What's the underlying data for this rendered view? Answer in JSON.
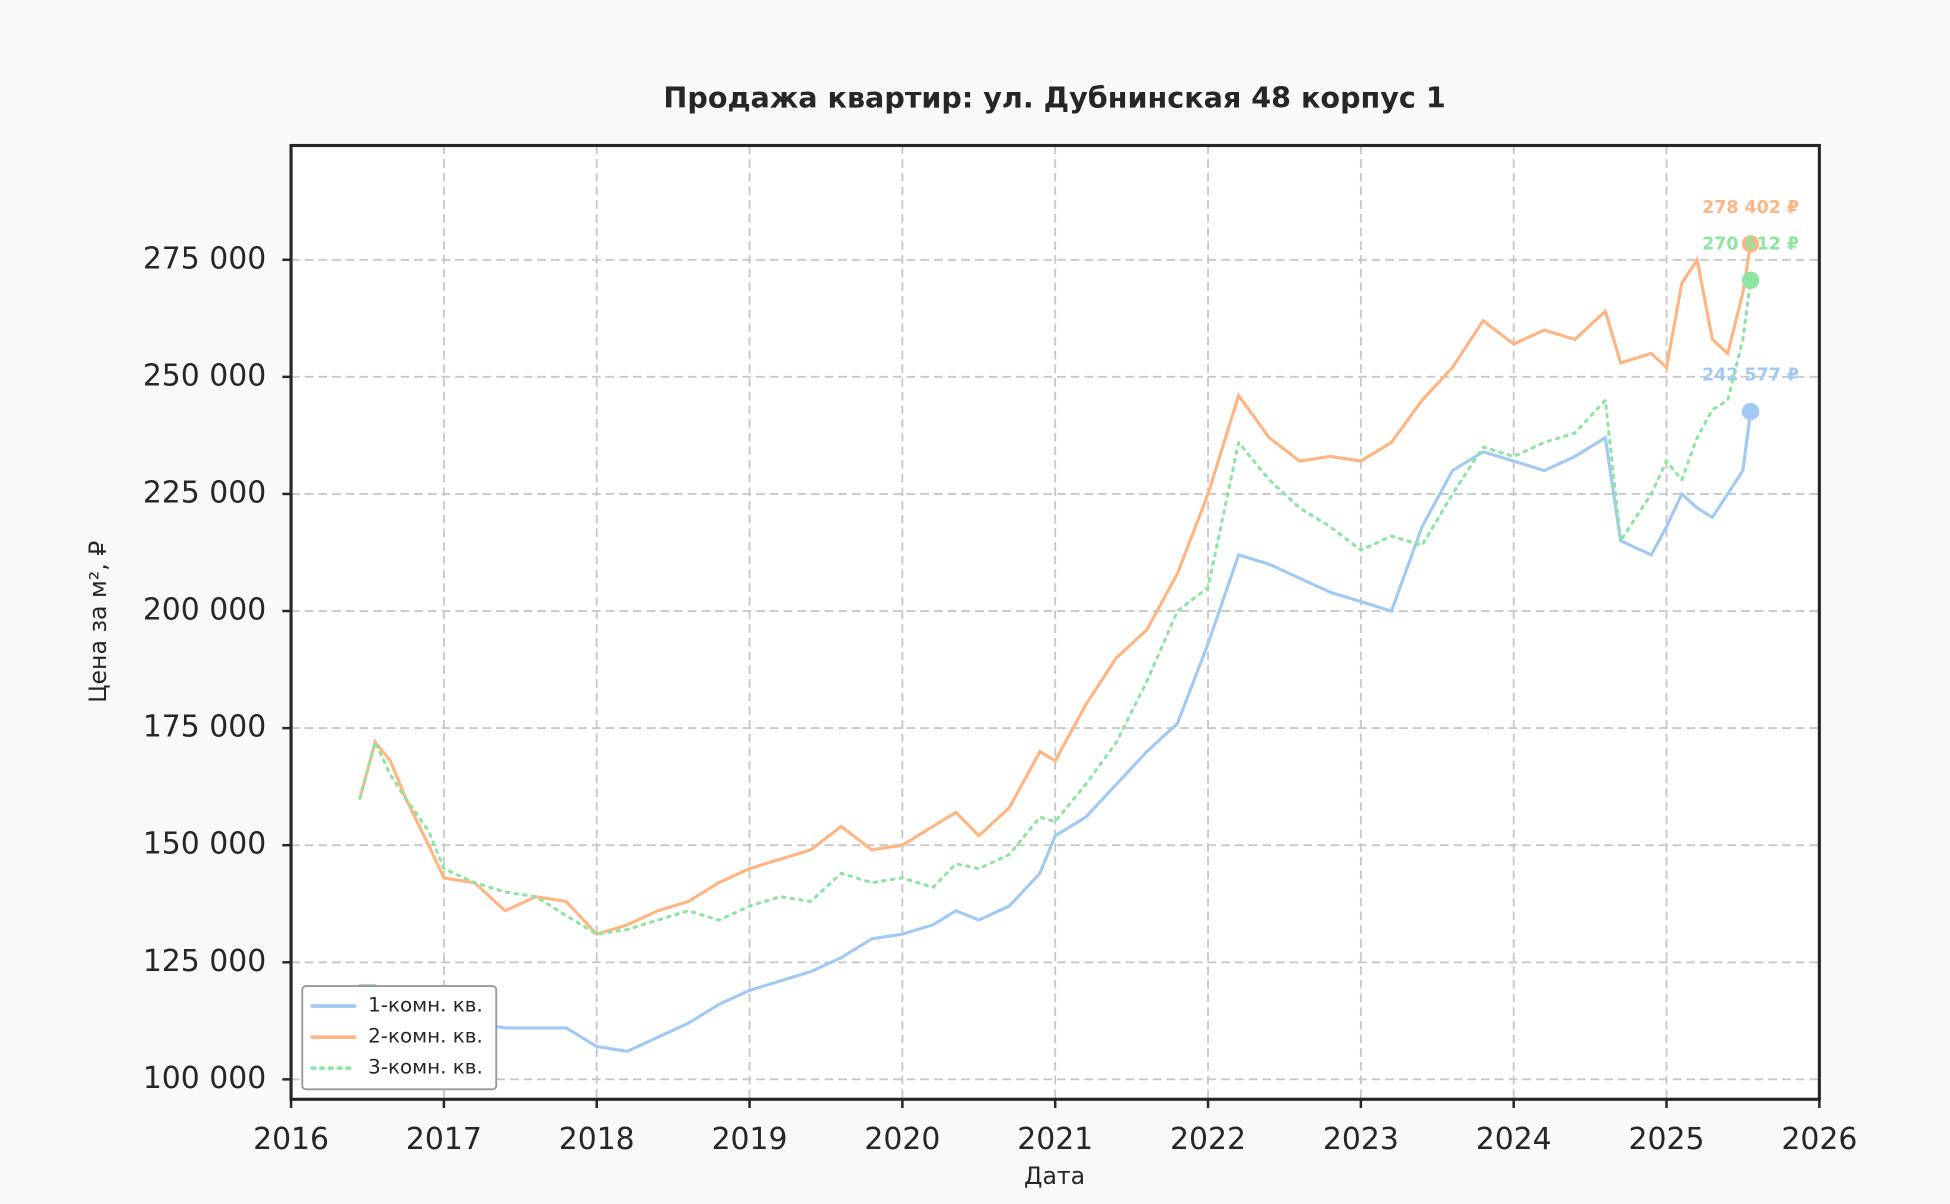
{
  "chart_data": {
    "type": "line",
    "title": "Продажа квартир: ул. Дубнинская 48 корпус 1",
    "x_label": "Дата",
    "y_label": "Цена за м², ₽",
    "xlim": [
      2016,
      2026
    ],
    "xticks": [
      2016,
      2017,
      2018,
      2019,
      2020,
      2021,
      2022,
      2023,
      2024,
      2025,
      2026
    ],
    "ylim": [
      95750,
      299400
    ],
    "yticks": [
      {
        "value": 100000,
        "label": "100 000"
      },
      {
        "value": 125000,
        "label": "125 000"
      },
      {
        "value": 150000,
        "label": "150 000"
      },
      {
        "value": 175000,
        "label": "175 000"
      },
      {
        "value": 200000,
        "label": "200 000"
      },
      {
        "value": 225000,
        "label": "225 000"
      },
      {
        "value": 250000,
        "label": "250 000"
      },
      {
        "value": 275000,
        "label": "275 000"
      }
    ],
    "grid": true,
    "legend": "lower left",
    "x": [
      2016.45,
      2016.55,
      2016.65,
      2016.75,
      2016.9,
      2017.0,
      2017.2,
      2017.4,
      2017.6,
      2017.8,
      2018.0,
      2018.2,
      2018.4,
      2018.6,
      2018.8,
      2019.0,
      2019.2,
      2019.4,
      2019.6,
      2019.8,
      2020.0,
      2020.2,
      2020.35,
      2020.5,
      2020.7,
      2020.9,
      2021.0,
      2021.2,
      2021.4,
      2021.6,
      2021.8,
      2022.0,
      2022.2,
      2022.4,
      2022.6,
      2022.8,
      2023.0,
      2023.2,
      2023.4,
      2023.6,
      2023.8,
      2024.0,
      2024.2,
      2024.4,
      2024.6,
      2024.7,
      2024.9,
      2025.0,
      2025.1,
      2025.2,
      2025.3,
      2025.4,
      2025.5,
      2025.55
    ],
    "series": [
      {
        "name": "1-комн. кв.",
        "color": "#a1c9f4",
        "dash": "solid",
        "end_label": "242 577 ₽",
        "values": [
          120000,
          120000,
          118000,
          116000,
          114000,
          113000,
          112000,
          111000,
          111000,
          111000,
          107000,
          106000,
          109000,
          112000,
          116000,
          119000,
          121000,
          123000,
          126000,
          130000,
          131000,
          133000,
          136000,
          134000,
          137000,
          144000,
          152000,
          156000,
          163000,
          170000,
          176000,
          193000,
          212000,
          210000,
          207000,
          204000,
          202000,
          200000,
          218000,
          230000,
          234000,
          232000,
          230000,
          233000,
          237000,
          215000,
          212000,
          218000,
          225000,
          222000,
          220000,
          225000,
          230000,
          242577
        ]
      },
      {
        "name": "2-комн. кв.",
        "color": "#ffb482",
        "dash": "solid",
        "end_label": "278 402 ₽",
        "values": [
          160000,
          172000,
          168000,
          160000,
          150000,
          143000,
          142000,
          136000,
          139000,
          138000,
          131000,
          133000,
          136000,
          138000,
          142000,
          145000,
          147000,
          149000,
          154000,
          149000,
          150000,
          154000,
          157000,
          152000,
          158000,
          170000,
          168000,
          180000,
          190000,
          196000,
          208000,
          225000,
          246000,
          237000,
          232000,
          233000,
          232000,
          236000,
          245000,
          252000,
          262000,
          257000,
          260000,
          258000,
          264000,
          253000,
          255000,
          252000,
          270000,
          275000,
          258000,
          255000,
          268000,
          278402
        ]
      },
      {
        "name": "3-комн. кв.",
        "color": "#8de5a1",
        "dash": "dotted",
        "end_label": "270 612 ₽",
        "values": [
          160000,
          172000,
          165000,
          160000,
          153000,
          145000,
          142000,
          140000,
          139000,
          135000,
          131000,
          132000,
          134000,
          136000,
          134000,
          137000,
          139000,
          138000,
          144000,
          142000,
          143000,
          141000,
          146000,
          145000,
          148000,
          156000,
          155000,
          163000,
          172000,
          185000,
          200000,
          205000,
          236000,
          228000,
          222000,
          218000,
          213000,
          216000,
          214000,
          225000,
          235000,
          233000,
          236000,
          238000,
          245000,
          215000,
          225000,
          232000,
          228000,
          237000,
          243000,
          245000,
          258000,
          270612
        ]
      }
    ]
  }
}
